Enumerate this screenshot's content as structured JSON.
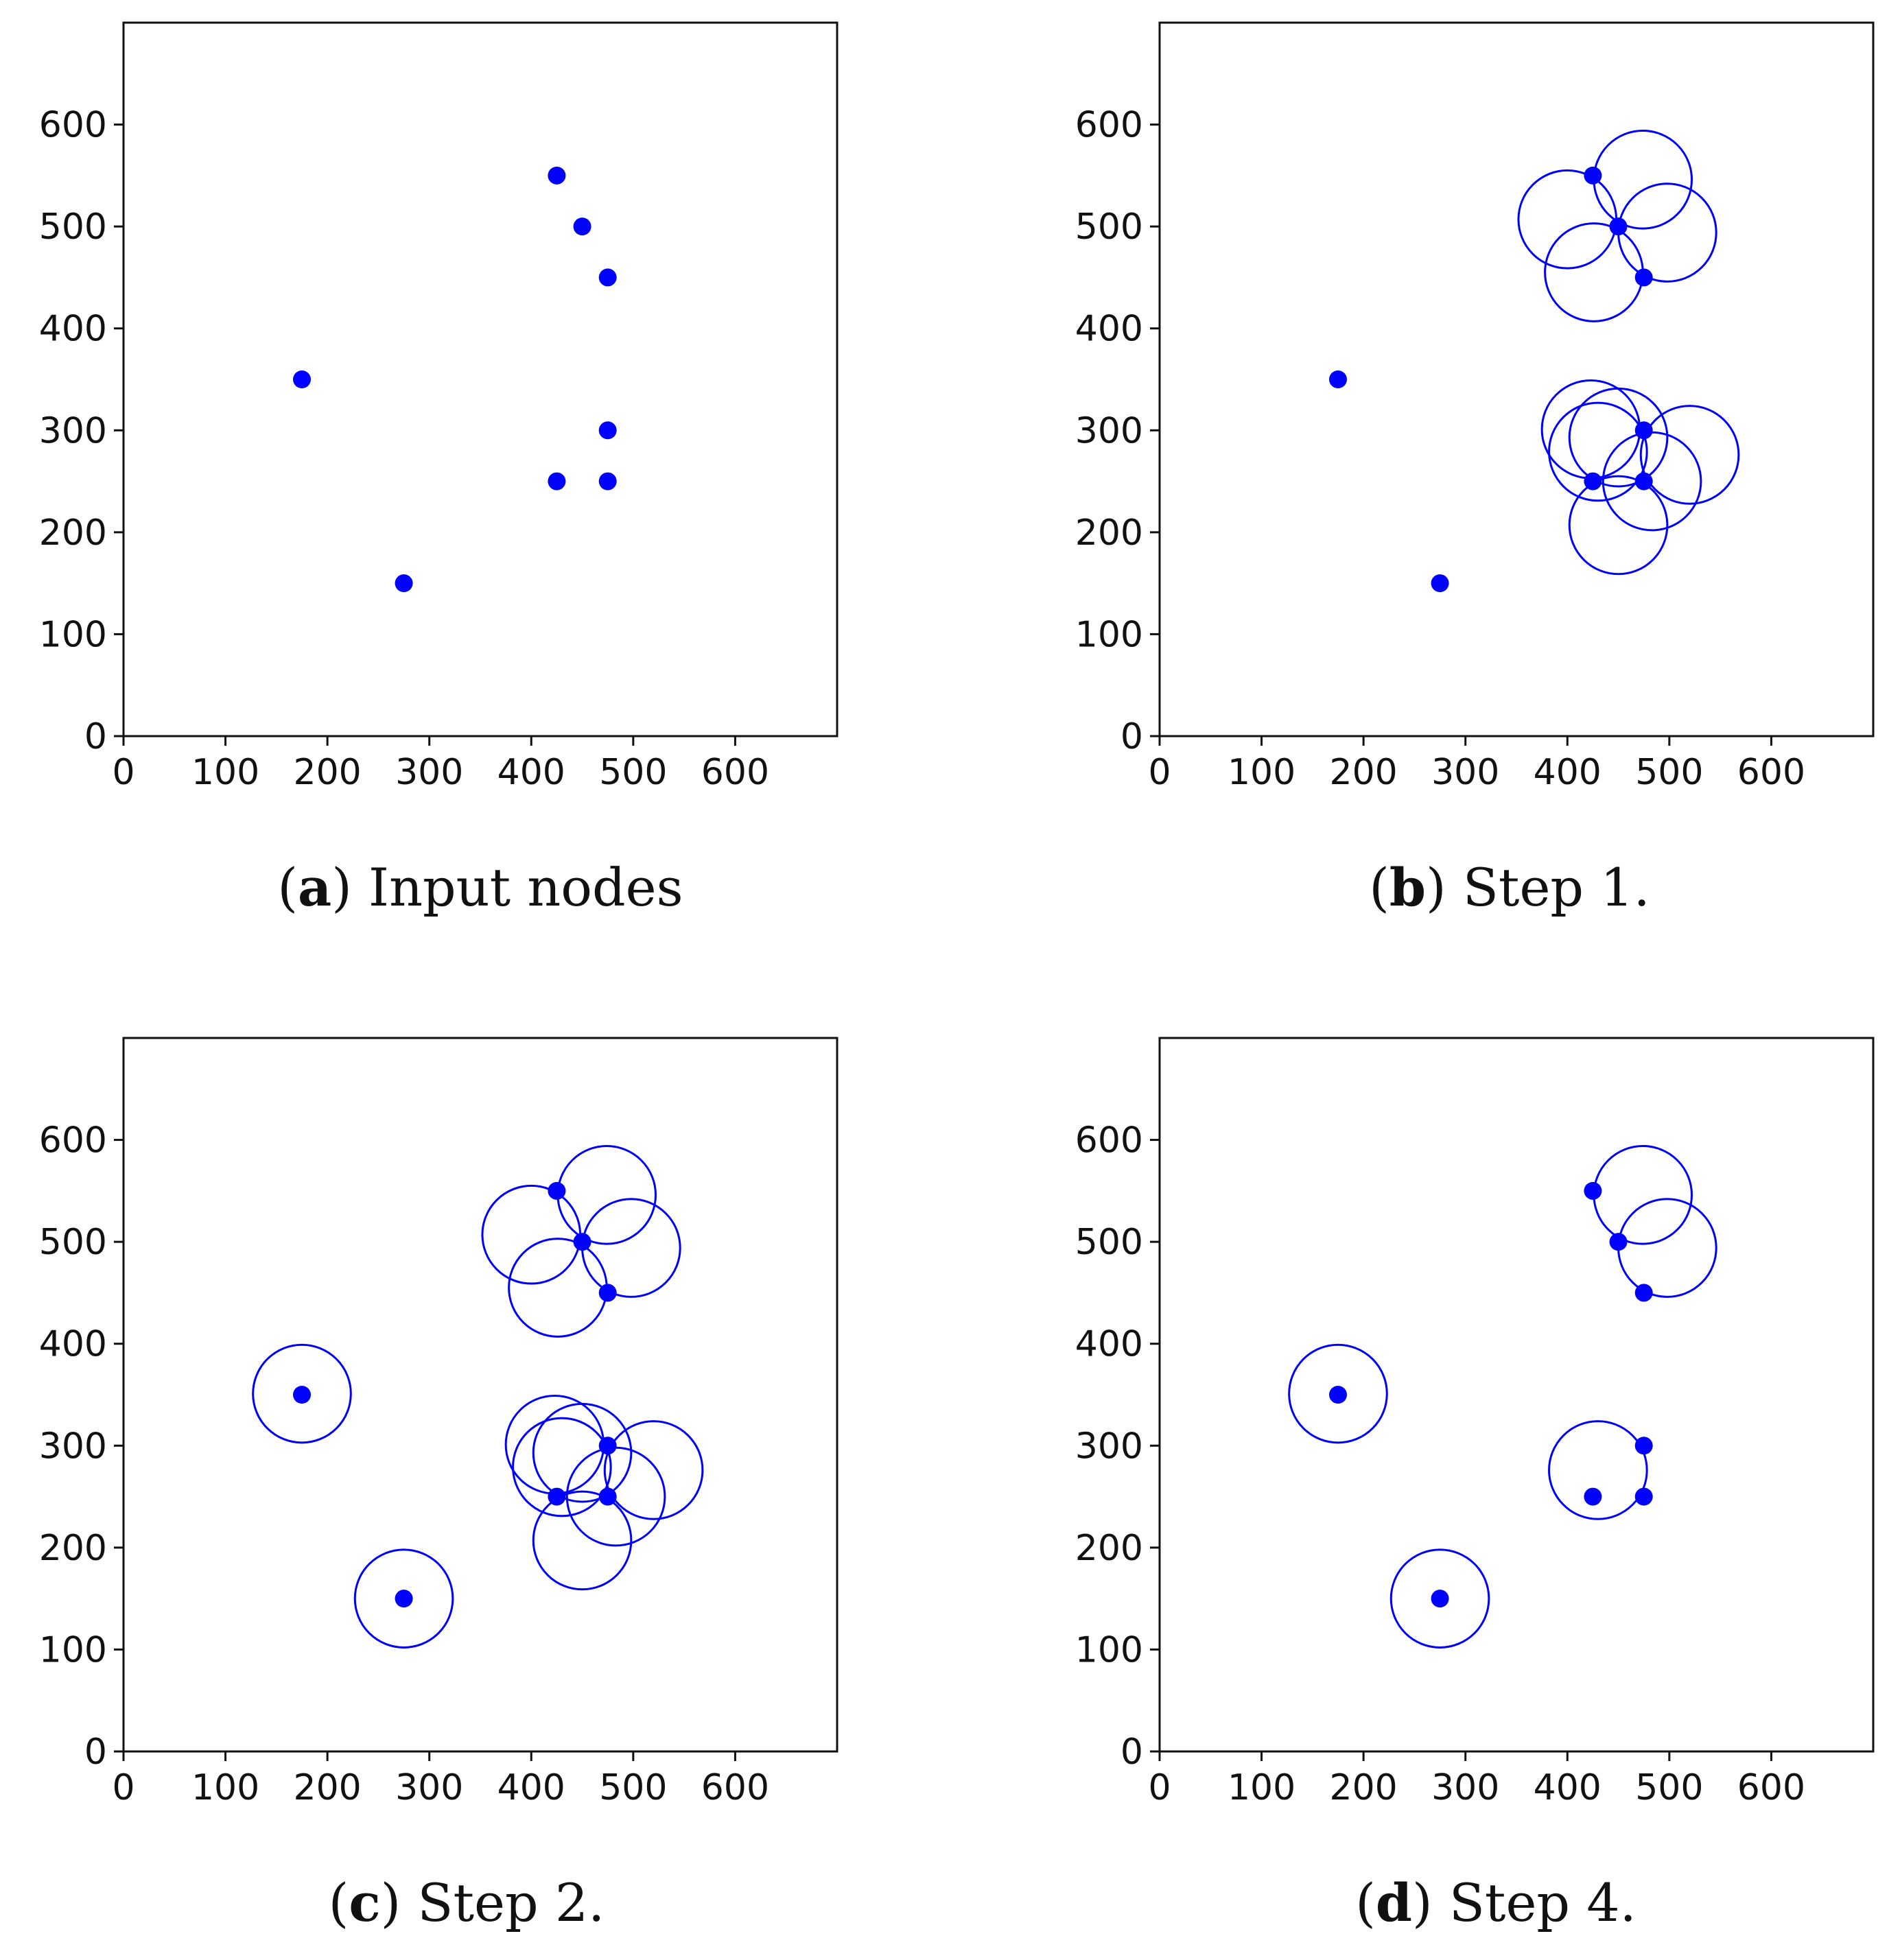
{
  "figure": {
    "panels_order": [
      "a",
      "b",
      "c",
      "d"
    ]
  },
  "colors": {
    "marker": "#0000ff",
    "circle": "#0000ff",
    "axes": "#111111",
    "text": "#111111",
    "background": "#ffffff"
  },
  "chart_data": [
    {
      "id": "a",
      "type": "scatter",
      "caption_letter": "a",
      "caption_text": "Input nodes",
      "x_ticks": [
        "0",
        "100",
        "200",
        "300",
        "400",
        "500",
        "600"
      ],
      "y_ticks": [
        "0",
        "100",
        "200",
        "300",
        "400",
        "500",
        "600"
      ],
      "xlim": [
        0,
        700
      ],
      "ylim": [
        0,
        700
      ],
      "points": [
        [
          425,
          550
        ],
        [
          450,
          500
        ],
        [
          475,
          450
        ],
        [
          175,
          350
        ],
        [
          475,
          300
        ],
        [
          425,
          250
        ],
        [
          475,
          250
        ],
        [
          275,
          150
        ]
      ],
      "circles": []
    },
    {
      "id": "b",
      "type": "scatter",
      "caption_letter": "b",
      "caption_text": "Step 1.",
      "x_ticks": [
        "0",
        "100",
        "200",
        "300",
        "400",
        "500",
        "600"
      ],
      "y_ticks": [
        "0",
        "100",
        "200",
        "300",
        "400",
        "500",
        "600"
      ],
      "xlim": [
        0,
        700
      ],
      "ylim": [
        0,
        700
      ],
      "points": [
        [
          425,
          550
        ],
        [
          450,
          500
        ],
        [
          475,
          450
        ],
        [
          175,
          350
        ],
        [
          475,
          300
        ],
        [
          425,
          250
        ],
        [
          475,
          250
        ],
        [
          275,
          150
        ]
      ],
      "circles": [
        {
          "cx": 474,
          "cy": 546,
          "r": 48
        },
        {
          "cx": 400,
          "cy": 507,
          "r": 48
        },
        {
          "cx": 498,
          "cy": 494,
          "r": 48
        },
        {
          "cx": 426,
          "cy": 455,
          "r": 48
        },
        {
          "cx": 423,
          "cy": 301,
          "r": 48
        },
        {
          "cx": 450,
          "cy": 293,
          "r": 48
        },
        {
          "cx": 430,
          "cy": 279,
          "r": 48
        },
        {
          "cx": 520,
          "cy": 276,
          "r": 48
        },
        {
          "cx": 483,
          "cy": 250,
          "r": 48
        },
        {
          "cx": 450,
          "cy": 207,
          "r": 48
        }
      ]
    },
    {
      "id": "c",
      "type": "scatter",
      "caption_letter": "c",
      "caption_text": "Step 2.",
      "x_ticks": [
        "0",
        "100",
        "200",
        "300",
        "400",
        "500",
        "600"
      ],
      "y_ticks": [
        "0",
        "100",
        "200",
        "300",
        "400",
        "500",
        "600"
      ],
      "xlim": [
        0,
        700
      ],
      "ylim": [
        0,
        700
      ],
      "points": [
        [
          425,
          550
        ],
        [
          450,
          500
        ],
        [
          475,
          450
        ],
        [
          175,
          350
        ],
        [
          475,
          300
        ],
        [
          425,
          250
        ],
        [
          475,
          250
        ],
        [
          275,
          150
        ]
      ],
      "circles": [
        {
          "cx": 474,
          "cy": 546,
          "r": 48
        },
        {
          "cx": 400,
          "cy": 507,
          "r": 48
        },
        {
          "cx": 498,
          "cy": 494,
          "r": 48
        },
        {
          "cx": 426,
          "cy": 455,
          "r": 48
        },
        {
          "cx": 175,
          "cy": 351,
          "r": 48
        },
        {
          "cx": 423,
          "cy": 301,
          "r": 48
        },
        {
          "cx": 450,
          "cy": 293,
          "r": 48
        },
        {
          "cx": 430,
          "cy": 279,
          "r": 48
        },
        {
          "cx": 520,
          "cy": 276,
          "r": 48
        },
        {
          "cx": 483,
          "cy": 250,
          "r": 48
        },
        {
          "cx": 450,
          "cy": 207,
          "r": 48
        },
        {
          "cx": 275,
          "cy": 150,
          "r": 48
        }
      ]
    },
    {
      "id": "d",
      "type": "scatter",
      "caption_letter": "d",
      "caption_text": "Step 4.",
      "x_ticks": [
        "0",
        "100",
        "200",
        "300",
        "400",
        "500",
        "600"
      ],
      "y_ticks": [
        "0",
        "100",
        "200",
        "300",
        "400",
        "500",
        "600"
      ],
      "xlim": [
        0,
        700
      ],
      "ylim": [
        0,
        700
      ],
      "points": [
        [
          425,
          550
        ],
        [
          450,
          500
        ],
        [
          475,
          450
        ],
        [
          175,
          350
        ],
        [
          475,
          300
        ],
        [
          425,
          250
        ],
        [
          475,
          250
        ],
        [
          275,
          150
        ]
      ],
      "circles": [
        {
          "cx": 474,
          "cy": 546,
          "r": 48
        },
        {
          "cx": 498,
          "cy": 494,
          "r": 48
        },
        {
          "cx": 175,
          "cy": 351,
          "r": 48
        },
        {
          "cx": 430,
          "cy": 276,
          "r": 48
        },
        {
          "cx": 275,
          "cy": 150,
          "r": 48
        }
      ]
    }
  ]
}
